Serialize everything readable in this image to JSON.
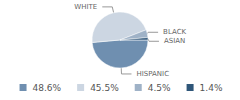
{
  "chart_data": {
    "type": "pie",
    "categories": [
      "HISPANIC",
      "WHITE",
      "BLACK",
      "ASIAN"
    ],
    "values": [
      48.6,
      45.5,
      4.5,
      1.4
    ],
    "value_labels": [
      "48.6%",
      "45.5%",
      "4.5%",
      "1.4%"
    ],
    "colors": [
      "#6f8fb0",
      "#ccd6e2",
      "#9fb2c7",
      "#2f5679"
    ],
    "legend": "bottom"
  }
}
